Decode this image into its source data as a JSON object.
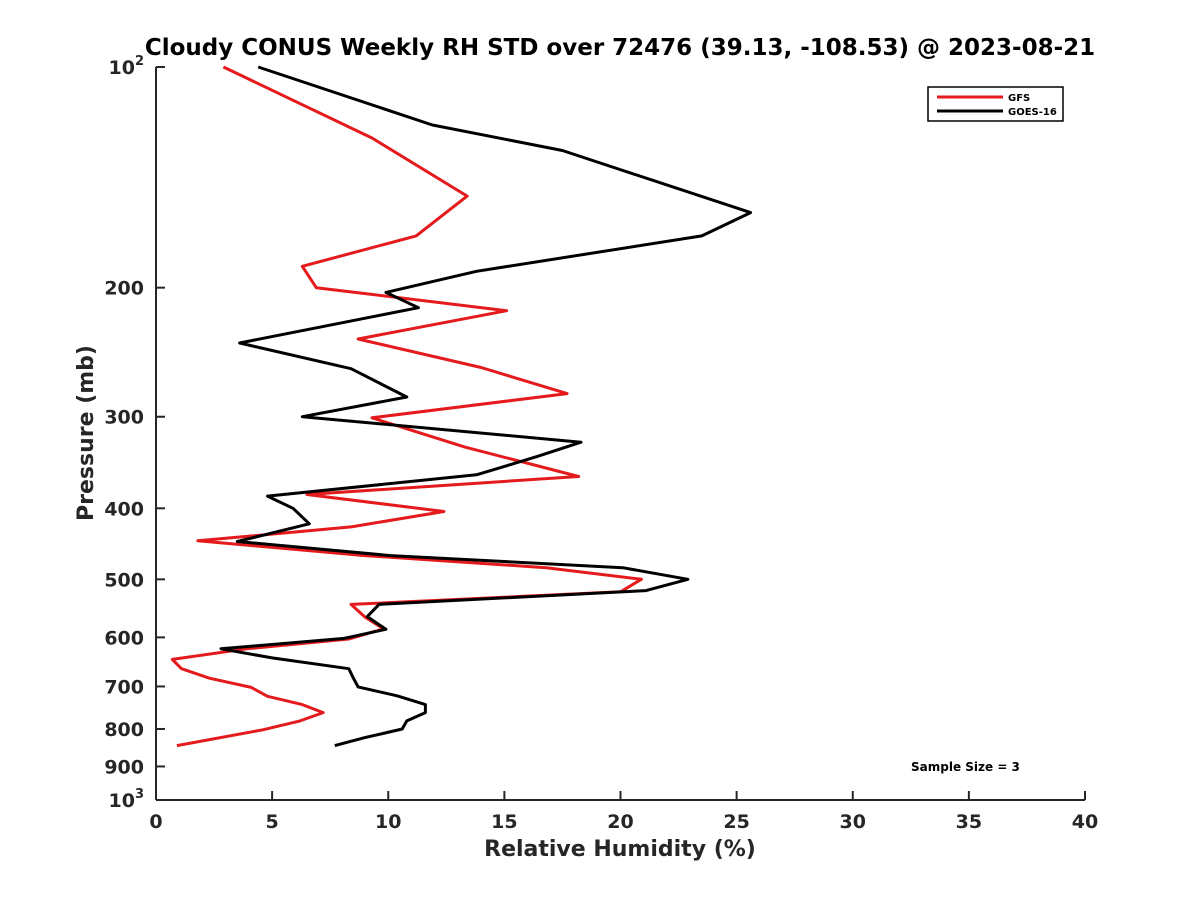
{
  "chart_data": {
    "type": "line",
    "title": "Cloudy CONUS Weekly RH STD over 72476 (39.13, -108.53) @ 2023-08-21",
    "xlabel": "Relative Humidity (%)",
    "ylabel": "Pressure (mb)",
    "xlim": [
      0,
      40
    ],
    "ylim": [
      100,
      1000
    ],
    "y_scale": "log",
    "y_reversed": true,
    "grid": false,
    "legend_position": "top-right",
    "x_ticks": [
      "0",
      "5",
      "10",
      "15",
      "20",
      "25",
      "30",
      "35",
      "40"
    ],
    "y_ticks": [
      {
        "value": 100,
        "label": "10",
        "sup": "2"
      },
      {
        "value": 200,
        "label": "200"
      },
      {
        "value": 300,
        "label": "300"
      },
      {
        "value": 400,
        "label": "400"
      },
      {
        "value": 500,
        "label": "500"
      },
      {
        "value": 600,
        "label": "600"
      },
      {
        "value": 700,
        "label": "700"
      },
      {
        "value": 800,
        "label": "800"
      },
      {
        "value": 900,
        "label": "900"
      },
      {
        "value": 1000,
        "label": "10",
        "sup": "3"
      }
    ],
    "annotation": "Sample Size = 3",
    "series": [
      {
        "name": "GFS",
        "color": "#e41a1c",
        "points": [
          [
            2.9,
            100
          ],
          [
            9.3,
            125
          ],
          [
            13.4,
            150
          ],
          [
            11.2,
            170
          ],
          [
            6.3,
            187
          ],
          [
            6.9,
            200
          ],
          [
            15.1,
            215
          ],
          [
            8.7,
            235
          ],
          [
            14.0,
            257
          ],
          [
            17.7,
            279
          ],
          [
            9.3,
            301
          ],
          [
            13.3,
            330
          ],
          [
            18.2,
            362
          ],
          [
            6.5,
            383
          ],
          [
            12.4,
            404
          ],
          [
            8.4,
            424
          ],
          [
            1.8,
            443
          ],
          [
            9.0,
            464
          ],
          [
            16.8,
            482
          ],
          [
            20.9,
            500
          ],
          [
            20.0,
            520
          ],
          [
            8.4,
            541
          ],
          [
            9.0,
            563
          ],
          [
            9.8,
            584
          ],
          [
            8.3,
            603
          ],
          [
            3.9,
            622
          ],
          [
            0.7,
            643
          ],
          [
            1.1,
            662
          ],
          [
            2.3,
            682
          ],
          [
            4.1,
            702
          ],
          [
            4.8,
            722
          ],
          [
            6.3,
            741
          ],
          [
            7.2,
            760
          ],
          [
            6.2,
            780
          ],
          [
            4.6,
            802
          ],
          [
            0.9,
            843
          ]
        ]
      },
      {
        "name": "GOES-16",
        "color": "#000000",
        "points": [
          [
            4.4,
            100
          ],
          [
            11.9,
            120
          ],
          [
            17.5,
            130
          ],
          [
            25.6,
            158
          ],
          [
            23.5,
            170
          ],
          [
            13.8,
            190
          ],
          [
            9.9,
            203
          ],
          [
            11.3,
            213
          ],
          [
            3.6,
            238
          ],
          [
            8.4,
            258
          ],
          [
            10.8,
            282
          ],
          [
            6.3,
            300
          ],
          [
            18.3,
            325
          ],
          [
            16.4,
            340
          ],
          [
            13.8,
            360
          ],
          [
            4.8,
            385
          ],
          [
            5.9,
            400
          ],
          [
            6.6,
            420
          ],
          [
            3.5,
            444
          ],
          [
            10.1,
            464
          ],
          [
            20.1,
            482
          ],
          [
            22.9,
            500
          ],
          [
            21.1,
            518
          ],
          [
            9.6,
            541
          ],
          [
            9.1,
            562
          ],
          [
            9.9,
            585
          ],
          [
            8.1,
            602
          ],
          [
            2.8,
            622
          ],
          [
            5.0,
            640
          ],
          [
            8.3,
            662
          ],
          [
            8.5,
            682
          ],
          [
            8.7,
            701
          ],
          [
            10.4,
            721
          ],
          [
            11.6,
            741
          ],
          [
            11.6,
            760
          ],
          [
            10.8,
            780
          ],
          [
            10.6,
            800
          ],
          [
            9.0,
            822
          ],
          [
            7.7,
            843
          ]
        ]
      }
    ]
  }
}
